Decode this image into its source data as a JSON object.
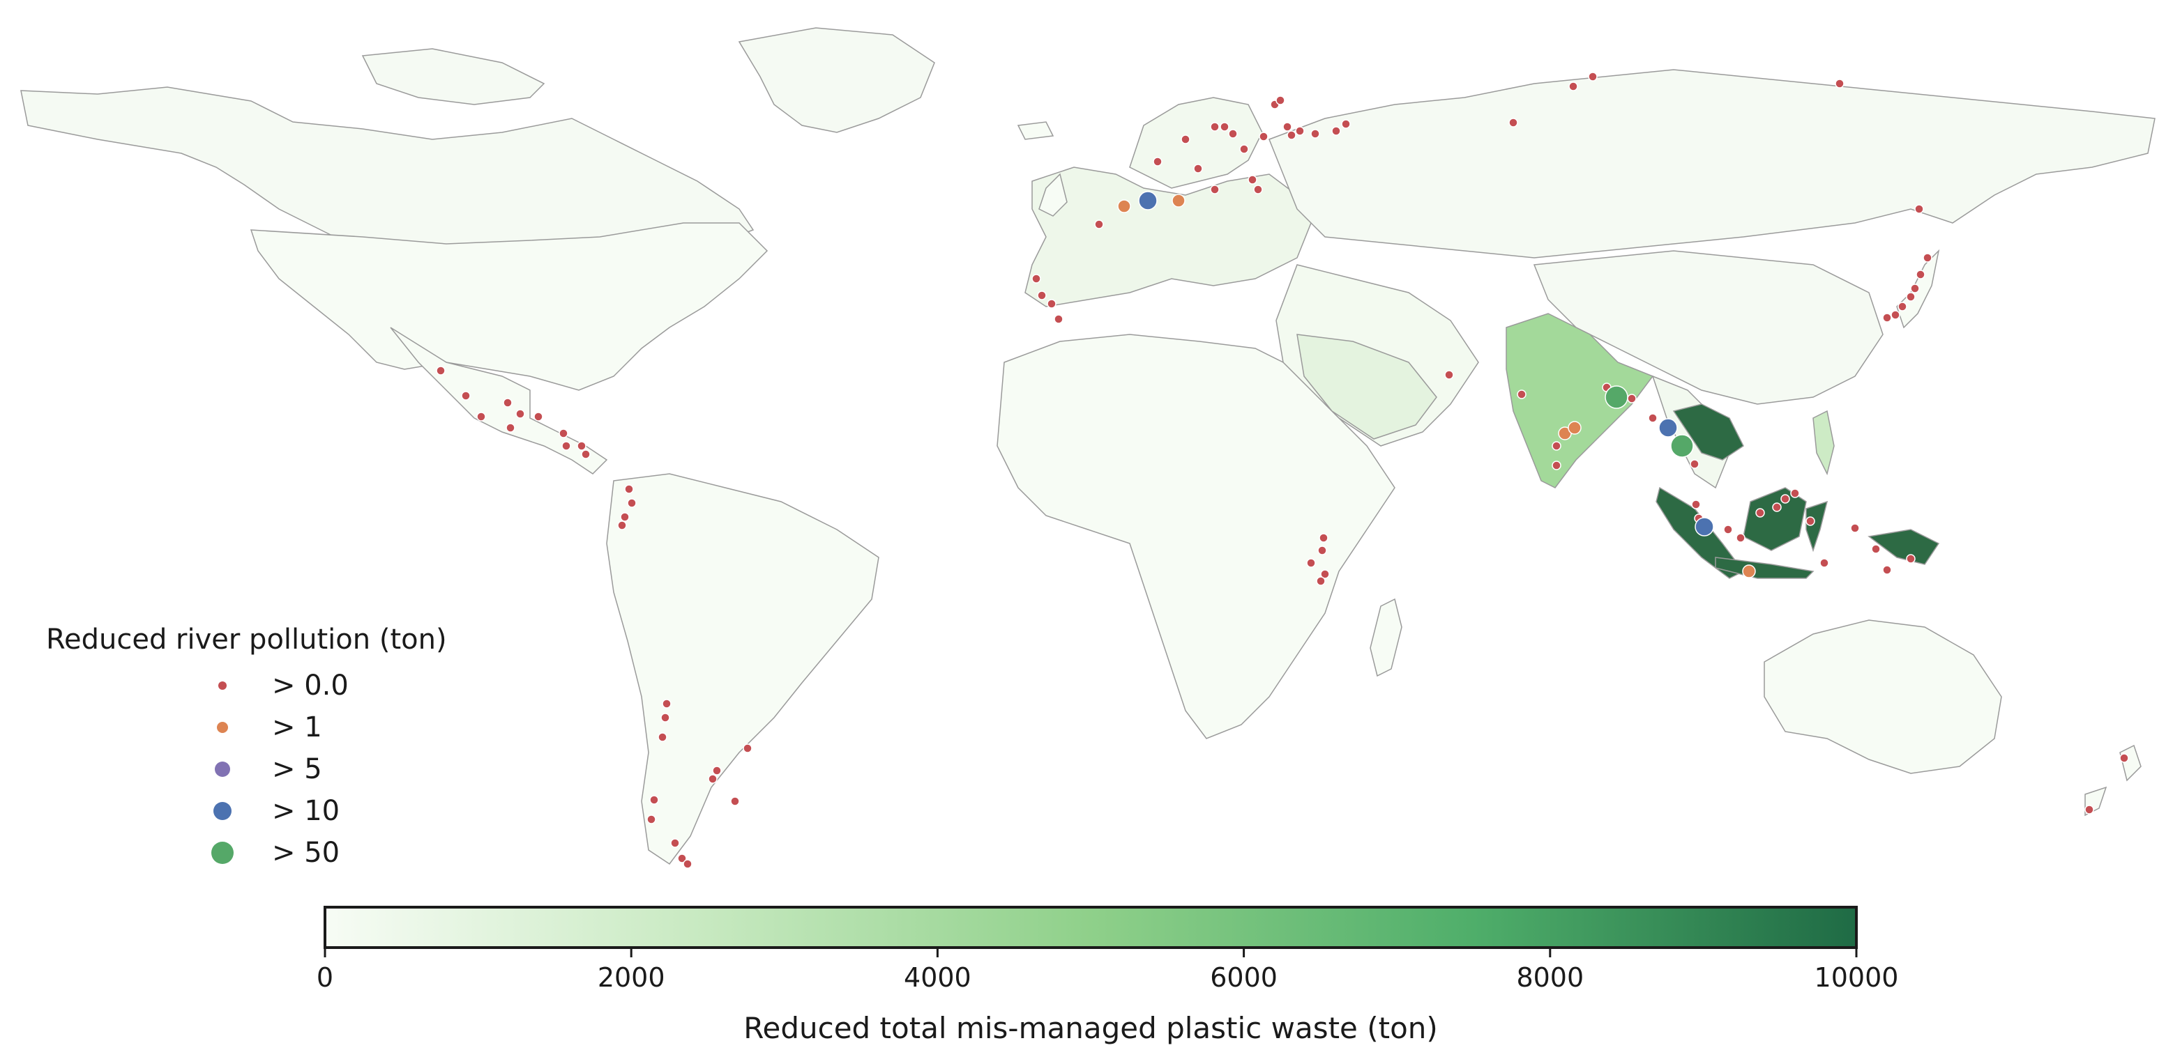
{
  "legend": {
    "title": "Reduced river pollution (ton)",
    "items": [
      {
        "label": "> 0.0",
        "color": "#c44e52",
        "size": "small"
      },
      {
        "label": "> 1",
        "color": "#dd8452",
        "size": "small-medium"
      },
      {
        "label": "> 5",
        "color": "#8172b3",
        "size": "medium"
      },
      {
        "label": "> 10",
        "color": "#4c72b0",
        "size": "medium-large"
      },
      {
        "label": "> 50",
        "color": "#55a868",
        "size": "large"
      }
    ]
  },
  "colorbar": {
    "label": "Reduced total mis-managed plastic waste (ton)",
    "ticks": [
      "0",
      "2000",
      "4000",
      "6000",
      "8000",
      "10000"
    ],
    "range": [
      0,
      10000
    ],
    "colors": [
      "#f7fcf5",
      "#c7e9c0",
      "#74c476",
      "#2e8b57",
      "#1b5e3a"
    ]
  },
  "map_colors": {
    "land_base": "#f7fcf5",
    "border": "#9a9a9a",
    "ocean": "#ffffff"
  }
}
